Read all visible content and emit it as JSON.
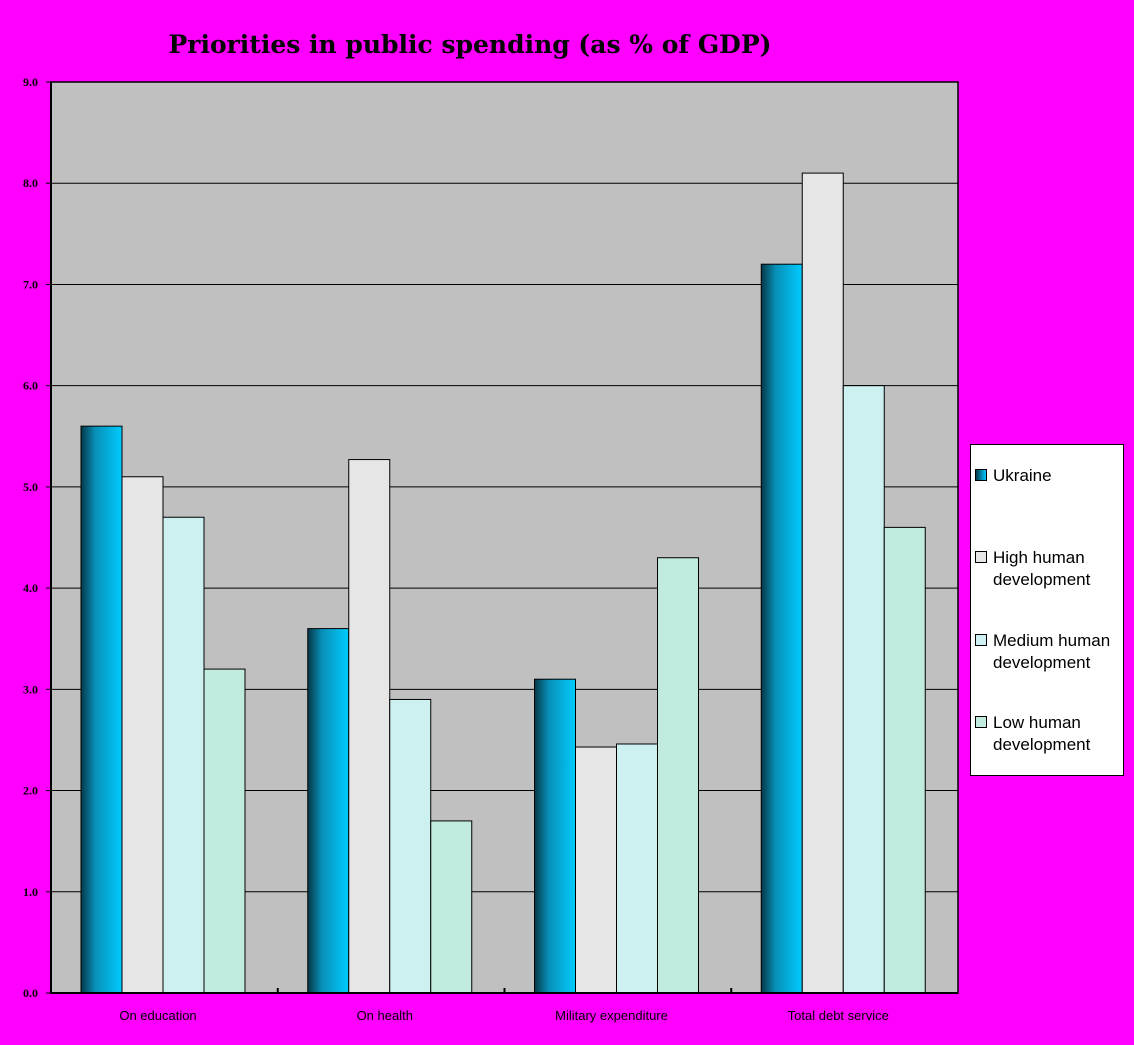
{
  "chart_data": {
    "type": "bar",
    "title": "Priorities in public spending (as % of GDP)",
    "xlabel": "",
    "ylabel": "",
    "ylim": [
      0,
      9
    ],
    "y_ticks": [
      "0.0",
      "1.0",
      "2.0",
      "3.0",
      "4.0",
      "5.0",
      "6.0",
      "7.0",
      "8.0",
      "9.0"
    ],
    "grid": true,
    "legend_position": "right",
    "categories": [
      "On education",
      "On health",
      "Military expenditure",
      "Total debt service"
    ],
    "series": [
      {
        "name": "Ukraine",
        "color": "#00b4d8",
        "values": [
          5.6,
          3.6,
          3.1,
          7.2
        ]
      },
      {
        "name": "High human development",
        "color": "#e6e6e6",
        "values": [
          5.1,
          5.27,
          2.43,
          8.1
        ]
      },
      {
        "name": "Medium human development",
        "color": "#cdf1f1",
        "values": [
          4.7,
          2.9,
          2.46,
          6.0
        ]
      },
      {
        "name": "Low human development",
        "color": "#c2ebdf",
        "values": [
          3.2,
          1.7,
          4.3,
          4.6
        ]
      }
    ]
  },
  "colors": {
    "page_background": "#ff00ff",
    "plot_background": "#c0c0c0",
    "gridline": "#000000"
  }
}
